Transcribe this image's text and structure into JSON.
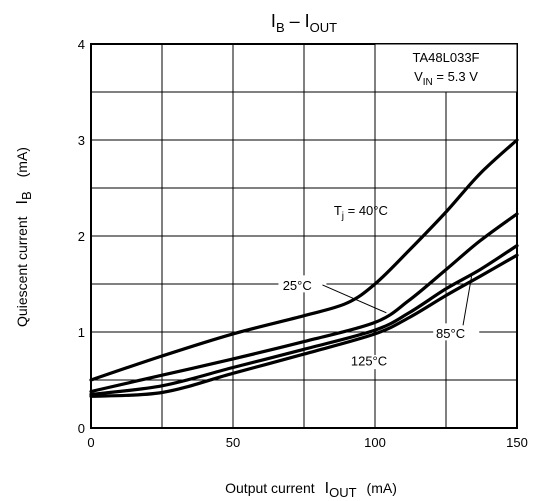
{
  "chart_data": {
    "type": "line",
    "title": {
      "main": "I",
      "main_sub": "B",
      "sep": " – I",
      "second_sub": "OUT"
    },
    "xlabel": {
      "text": "Output current",
      "symbol": "I",
      "symbol_sub": "OUT",
      "unit": "(mA)"
    },
    "ylabel": {
      "text": "Quiescent current",
      "symbol": "I",
      "symbol_sub": "B",
      "unit": "(mA)"
    },
    "xlim": [
      0,
      150
    ],
    "ylim": [
      0,
      4
    ],
    "x_ticks": [
      0,
      50,
      100,
      150
    ],
    "y_ticks": [
      0,
      1,
      2,
      3,
      4
    ],
    "grid": true,
    "legend": {
      "position": "top-right",
      "device": "TA48L033F",
      "condition_prefix": "V",
      "condition_sub": "IN",
      "condition_value": " = 5.3 V"
    },
    "series": [
      {
        "name_main": "T",
        "name_sub": "j",
        "name_value": " = 40°C",
        "x": [
          0,
          25,
          50,
          75,
          90,
          100,
          112,
          125,
          137,
          150
        ],
        "y": [
          0.5,
          0.75,
          0.98,
          1.17,
          1.3,
          1.5,
          1.85,
          2.25,
          2.65,
          3.0
        ]
      },
      {
        "name": "25°C",
        "x": [
          0,
          25,
          50,
          75,
          100,
          112,
          125,
          137,
          150
        ],
        "y": [
          0.38,
          0.55,
          0.72,
          0.9,
          1.1,
          1.33,
          1.65,
          1.95,
          2.23
        ]
      },
      {
        "name": "85°C",
        "x": [
          0,
          25,
          50,
          75,
          100,
          112,
          125,
          137,
          150
        ],
        "y": [
          0.35,
          0.44,
          0.63,
          0.82,
          1.02,
          1.2,
          1.45,
          1.65,
          1.9
        ]
      },
      {
        "name": "125°C",
        "x": [
          0,
          25,
          50,
          75,
          100,
          112,
          125,
          137,
          150
        ],
        "y": [
          0.33,
          0.37,
          0.57,
          0.77,
          0.98,
          1.15,
          1.38,
          1.58,
          1.8
        ]
      }
    ]
  }
}
